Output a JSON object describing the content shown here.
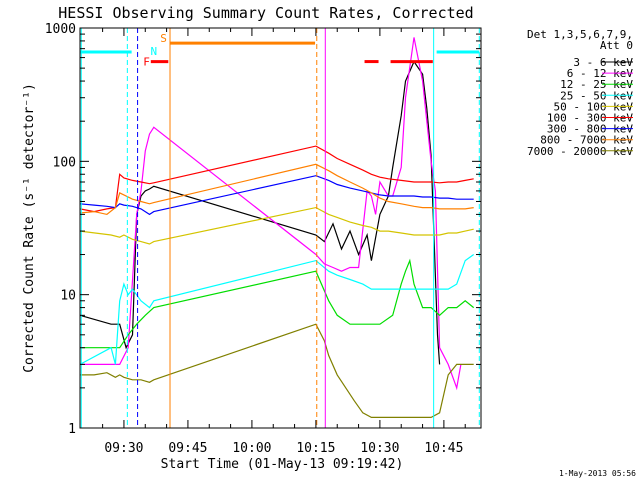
{
  "chart_data": {
    "type": "line",
    "title": "HESSI Observing Summary Count Rates, Corrected",
    "xlabel": "Start Time (01-May-13 09:19:42)",
    "ylabel": "Corrected Count Rate (s⁻¹ detector⁻¹)",
    "yscale": "log",
    "ylim": [
      1,
      1000
    ],
    "xlim": [
      "09:19:42",
      "10:53:00"
    ],
    "x_unit": "minutes after 09:00",
    "x_ticks": [
      {
        "label": "09:30",
        "value": 30
      },
      {
        "label": "09:45",
        "value": 45
      },
      {
        "label": "10:00",
        "value": 60
      },
      {
        "label": "10:15",
        "value": 75
      },
      {
        "label": "10:30",
        "value": 90
      },
      {
        "label": "10:45",
        "value": 105
      }
    ],
    "y_ticks": [
      {
        "label": "1",
        "value": 1
      },
      {
        "label": "10",
        "value": 10
      },
      {
        "label": "100",
        "value": 100
      },
      {
        "label": "1000",
        "value": 1000
      }
    ],
    "legend": {
      "placement": "right",
      "header": [
        "Det 1,3,5,6,7,9,",
        "Att 0"
      ]
    },
    "series": [
      {
        "name": "3 - 6 keV",
        "color": "#000000",
        "x": [
          19.7,
          27,
          29,
          30.5,
          32,
          33,
          34,
          35,
          36,
          37,
          75,
          77,
          79,
          81,
          83,
          85,
          87,
          88,
          90,
          92,
          93,
          95,
          96,
          98,
          100,
          101,
          102,
          103.5,
          104
        ],
        "y": [
          7,
          6,
          6,
          4,
          5,
          40,
          55,
          60,
          62,
          65,
          28,
          25,
          34,
          22,
          30,
          20,
          28,
          18,
          40,
          55,
          90,
          220,
          400,
          560,
          450,
          250,
          110,
          5,
          3
        ]
      },
      {
        "name": "6 - 12 keV",
        "color": "#ff00ff",
        "x": [
          19.7,
          27,
          29,
          31,
          33,
          34,
          35,
          36,
          37,
          75,
          77,
          79,
          81,
          83,
          85,
          87,
          88,
          89,
          90,
          92,
          93,
          95,
          96,
          98,
          100,
          101,
          102,
          103,
          104,
          106,
          108,
          109
        ],
        "y": [
          3,
          3,
          3,
          4,
          40,
          60,
          120,
          160,
          180,
          20,
          17,
          16,
          15,
          16,
          16,
          60,
          55,
          40,
          70,
          55,
          55,
          90,
          300,
          850,
          400,
          200,
          100,
          60,
          4,
          3,
          2,
          3
        ]
      },
      {
        "name": "12 - 25 keV",
        "color": "#00dd00",
        "x": [
          19.7,
          27,
          29,
          31,
          33,
          35,
          37,
          75,
          78,
          80,
          83,
          86,
          88,
          90,
          93,
          95,
          96,
          97,
          98,
          100,
          102,
          104,
          106,
          108,
          110,
          112
        ],
        "y": [
          4,
          4,
          4,
          5,
          6,
          7,
          8,
          15,
          9,
          7,
          6,
          6,
          6,
          6,
          7,
          12,
          15,
          18,
          12,
          8,
          8,
          7,
          8,
          8,
          9,
          8
        ]
      },
      {
        "name": "25 - 50 keV",
        "color": "#00ffff",
        "x": [
          19.7,
          27,
          28,
          29,
          30,
          31,
          32,
          34,
          36,
          37,
          75,
          78,
          80,
          83,
          86,
          88,
          90,
          92,
          95,
          98,
          100,
          102,
          104,
          106,
          108,
          110,
          112
        ],
        "y": [
          3,
          4,
          3,
          9,
          12,
          10,
          11,
          9,
          8,
          9,
          18,
          15,
          14,
          13,
          12,
          11,
          11,
          11,
          11,
          11,
          11,
          11,
          11,
          11,
          12,
          18,
          20
        ]
      },
      {
        "name": "50 - 100 keV",
        "color": "#d4c400",
        "x": [
          19.7,
          27,
          29,
          30,
          32,
          34,
          36,
          37,
          75,
          78,
          80,
          83,
          86,
          88,
          90,
          92,
          95,
          98,
          100,
          102,
          104,
          106,
          108,
          110,
          112
        ],
        "y": [
          30,
          28,
          27,
          28,
          26,
          25,
          24,
          25,
          45,
          40,
          38,
          35,
          33,
          32,
          30,
          30,
          29,
          28,
          28,
          28,
          28,
          29,
          29,
          30,
          31
        ]
      },
      {
        "name": "100 - 300 keV",
        "color": "#ff0000",
        "x": [
          19.7,
          23,
          26,
          28,
          29,
          30,
          32,
          34,
          36,
          37,
          75,
          78,
          80,
          83,
          86,
          88,
          90,
          92,
          95,
          98,
          100,
          102,
          104,
          106,
          108,
          110,
          112
        ],
        "y": [
          44,
          42,
          44,
          45,
          80,
          75,
          72,
          70,
          68,
          69,
          130,
          115,
          105,
          95,
          86,
          80,
          76,
          74,
          72,
          70,
          70,
          70,
          69,
          70,
          70,
          72,
          74
        ]
      },
      {
        "name": "300 - 800 keV",
        "color": "#0000ff",
        "x": [
          19.7,
          23,
          26,
          28,
          29,
          30,
          32,
          34,
          36,
          37,
          75,
          78,
          80,
          83,
          86,
          88,
          90,
          92,
          95,
          98,
          100,
          102,
          104,
          106,
          108,
          110,
          112
        ],
        "y": [
          48,
          47,
          46,
          45,
          48,
          47,
          46,
          44,
          40,
          42,
          78,
          72,
          67,
          63,
          60,
          58,
          56,
          55,
          55,
          55,
          54,
          54,
          53,
          53,
          52,
          52,
          52
        ]
      },
      {
        "name": "800 - 7000 keV",
        "color": "#ff8000",
        "x": [
          19.7,
          23,
          26,
          28,
          29,
          30,
          32,
          34,
          36,
          37,
          75,
          78,
          80,
          83,
          86,
          88,
          90,
          92,
          95,
          98,
          100,
          102,
          104,
          106,
          108,
          110,
          112
        ],
        "y": [
          41,
          42,
          40,
          45,
          58,
          56,
          52,
          50,
          48,
          49,
          95,
          85,
          78,
          70,
          63,
          58,
          53,
          50,
          48,
          46,
          45,
          45,
          44,
          44,
          44,
          44,
          45
        ]
      },
      {
        "name": "7000 - 20000 keV",
        "color": "#808000",
        "x": [
          19.7,
          23,
          26,
          28,
          29,
          30,
          32,
          34,
          36,
          37,
          75,
          77,
          78,
          80,
          82,
          84,
          86,
          88,
          90,
          95,
          100,
          102,
          104,
          106,
          108,
          110,
          112
        ],
        "y": [
          2.5,
          2.5,
          2.6,
          2.4,
          2.5,
          2.4,
          2.3,
          2.3,
          2.2,
          2.3,
          6,
          4.5,
          3.5,
          2.5,
          2,
          1.6,
          1.3,
          1.2,
          1.2,
          1.2,
          1.2,
          1.2,
          1.3,
          2.5,
          3,
          3,
          3
        ]
      }
    ],
    "vlines": [
      {
        "x": 20,
        "color": "#00ffff",
        "style": "solid"
      },
      {
        "x": 30.8,
        "color": "#00ffff",
        "style": "dashed"
      },
      {
        "x": 33.2,
        "color": "#0000ff",
        "style": "dashed"
      },
      {
        "x": 40.8,
        "color": "#ff8000",
        "style": "solid"
      },
      {
        "x": 75.2,
        "color": "#ff8000",
        "style": "dashed"
      },
      {
        "x": 77.2,
        "color": "#ff00ff",
        "style": "solid"
      },
      {
        "x": 102.6,
        "color": "#00ffff",
        "style": "solid"
      },
      {
        "x": 113.3,
        "color": "#00ffff",
        "style": "dashed"
      }
    ],
    "flag_bars": [
      {
        "x": [
          19.7,
          31.8
        ],
        "y": 660,
        "color": "#00ffff",
        "style": "solid"
      },
      {
        "x": [
          36.3,
          40.4
        ],
        "y": 560,
        "color": "#ff0000",
        "style": "solid"
      },
      {
        "x": [
          40.9,
          74.8
        ],
        "y": 770,
        "color": "#ff8000",
        "style": "solid"
      },
      {
        "x": [
          86.4,
          90.5
        ],
        "y": 560,
        "color": "#ff0000",
        "style": "dashed"
      },
      {
        "x": [
          92.5,
          102.4
        ],
        "y": 560,
        "color": "#ff0000",
        "style": "solid"
      },
      {
        "x": [
          103.3,
          113.3
        ],
        "y": 660,
        "color": "#00ffff",
        "style": "solid"
      }
    ],
    "flag_labels": [
      {
        "text": "F",
        "x": 35.3,
        "y": 560,
        "color": "#ff0000"
      },
      {
        "text": "N",
        "x": 37.0,
        "y": 670,
        "color": "#00ffff"
      },
      {
        "text": "S",
        "x": 39.3,
        "y": 840,
        "color": "#ff8000"
      }
    ]
  },
  "footer": {
    "timestamp": "1-May-2013 05:56"
  }
}
